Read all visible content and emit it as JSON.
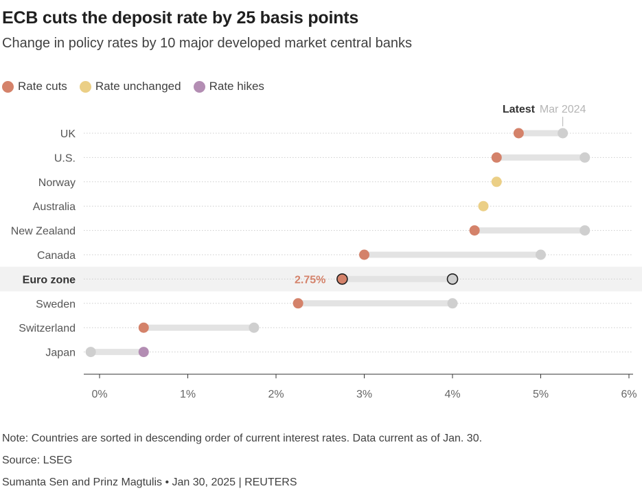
{
  "title": "ECB cuts the deposit rate by 25 basis points",
  "subtitle": "Change in policy rates by 10 major developed market central banks",
  "legend": [
    {
      "label": "Rate cuts",
      "color": "#d4826a"
    },
    {
      "label": "Rate unchanged",
      "color": "#ebcf86"
    },
    {
      "label": "Rate hikes",
      "color": "#b38db3"
    }
  ],
  "colors": {
    "previous_dot": "#cfcfcf",
    "connector": "#e3e3e3",
    "highlight_band": "#f2f2f2",
    "annotation_text": "#d4826a"
  },
  "chart_data": {
    "type": "dot-plot",
    "column_labels": {
      "latest": "Latest",
      "previous": "Mar 2024"
    },
    "x_ticks": [
      "0%",
      "1%",
      "2%",
      "3%",
      "4%",
      "5%",
      "6%"
    ],
    "xlim": [
      -0.18,
      6.05
    ],
    "grid": "horizontal dotted lines per row",
    "highlight_row": "Euro zone",
    "highlight_annotation": "2.75%",
    "rows": [
      {
        "country": "UK",
        "previous": 5.25,
        "latest": 4.75,
        "change": "cut"
      },
      {
        "country": "U.S.",
        "previous": 5.5,
        "latest": 4.5,
        "change": "cut"
      },
      {
        "country": "Norway",
        "previous": 4.5,
        "latest": 4.5,
        "change": "unchanged"
      },
      {
        "country": "Australia",
        "previous": 4.35,
        "latest": 4.35,
        "change": "unchanged"
      },
      {
        "country": "New Zealand",
        "previous": 5.5,
        "latest": 4.25,
        "change": "cut"
      },
      {
        "country": "Canada",
        "previous": 5.0,
        "latest": 3.0,
        "change": "cut"
      },
      {
        "country": "Euro zone",
        "previous": 4.0,
        "latest": 2.75,
        "change": "cut"
      },
      {
        "country": "Sweden",
        "previous": 4.0,
        "latest": 2.25,
        "change": "cut"
      },
      {
        "country": "Switzerland",
        "previous": 1.75,
        "latest": 0.5,
        "change": "cut"
      },
      {
        "country": "Japan",
        "previous": -0.1,
        "latest": 0.5,
        "change": "hike"
      }
    ]
  },
  "footer": {
    "note": "Note: Countries are sorted in descending order of current interest rates. Data current as of Jan. 30.",
    "source": "Source: LSEG",
    "credit": "Sumanta Sen and Prinz Magtulis • Jan 30, 2025 | REUTERS"
  }
}
